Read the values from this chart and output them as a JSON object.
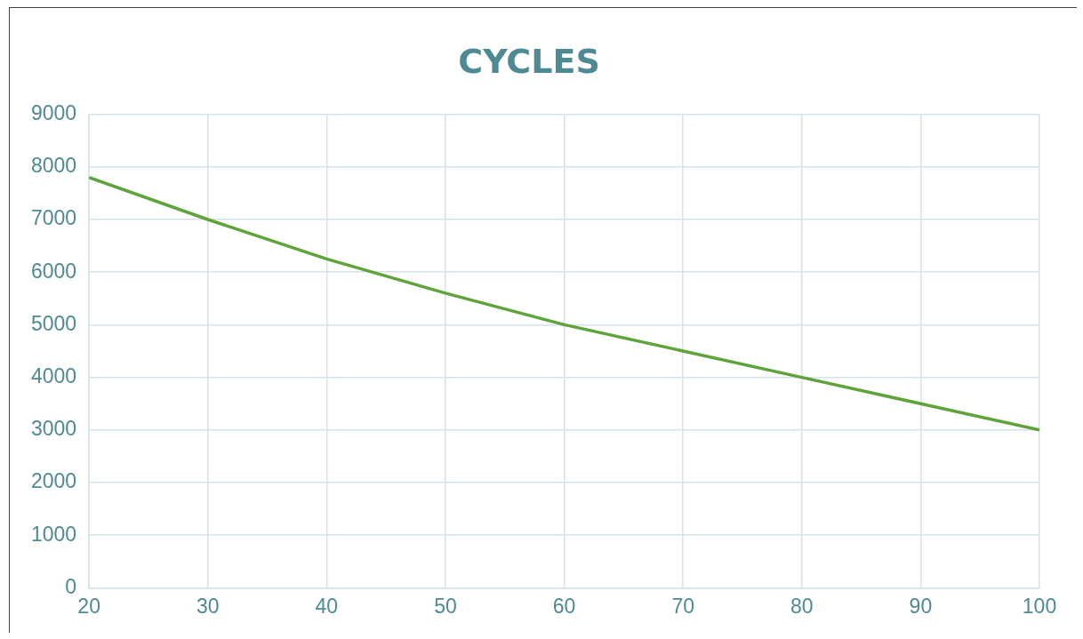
{
  "chart_data": {
    "type": "line",
    "title": "CYCLES",
    "x": [
      20,
      30,
      40,
      50,
      60,
      70,
      80,
      90,
      100
    ],
    "series": [
      {
        "color": "#5fa33b",
        "values": [
          7800,
          7000,
          6250,
          5600,
          5000,
          4500,
          4000,
          3500,
          3000
        ]
      }
    ],
    "xlim": [
      20,
      100
    ],
    "xticks": [
      20,
      30,
      40,
      50,
      60,
      70,
      80,
      90,
      100
    ],
    "ylim": [
      0,
      9000
    ],
    "yticks": [
      0,
      1000,
      2000,
      3000,
      4000,
      5000,
      6000,
      7000,
      8000,
      9000
    ],
    "grid": true,
    "legend": false,
    "marker": "none",
    "line_style": "solid"
  }
}
